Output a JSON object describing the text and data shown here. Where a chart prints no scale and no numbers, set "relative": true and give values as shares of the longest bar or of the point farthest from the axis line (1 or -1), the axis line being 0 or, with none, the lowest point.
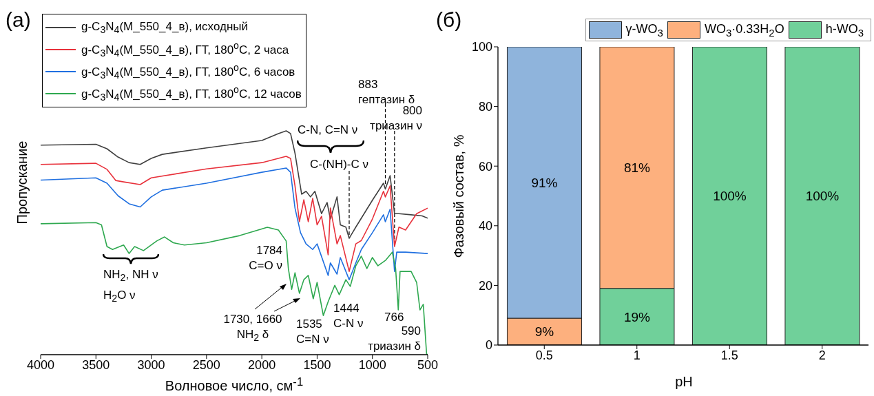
{
  "chart_data": [
    {
      "type": "line",
      "title": "(a)",
      "xlabel": "Волновое число, см$^{-1}$",
      "ylabel": "Пропускание",
      "relative": true,
      "xlim": [
        4000,
        500
      ],
      "xticks": [
        4000,
        3500,
        3000,
        2500,
        2000,
        1500,
        1000,
        500
      ],
      "legend": "top left",
      "series": [
        {
          "name": "g-C$_{3}$N$_{4}$(M_550_4_в), исходный",
          "color": "#404040",
          "x": [
            4000,
            3500,
            3400,
            3300,
            3200,
            3100,
            3000,
            2900,
            2500,
            2000,
            1850,
            1780,
            1740,
            1700,
            1640,
            1600,
            1560,
            1520,
            1460,
            1410,
            1380,
            1320,
            1290,
            1240,
            1210,
            1150,
            1000,
            900,
            883,
            840,
            800,
            760,
            650,
            550,
            500
          ],
          "values": [
            0.936,
            0.94,
            0.92,
            0.883,
            0.858,
            0.85,
            0.877,
            0.895,
            0.924,
            0.957,
            0.988,
            1.0,
            0.988,
            0.9,
            0.717,
            0.73,
            0.705,
            0.73,
            0.63,
            0.68,
            0.606,
            0.705,
            0.58,
            0.57,
            0.52,
            0.57,
            0.69,
            0.766,
            0.74,
            0.8,
            0.63,
            0.63,
            0.625,
            0.62,
            0.61
          ]
        },
        {
          "name": "g-C$_{3}$N$_{4}$(M_550_4_в), ГТ, 180$^{o}$C, 2 часа",
          "color": "#e8313b",
          "x": [
            4000,
            3500,
            3400,
            3320,
            3250,
            3100,
            3000,
            2500,
            2000,
            1780,
            1740,
            1700,
            1660,
            1620,
            1580,
            1540,
            1500,
            1460,
            1400,
            1380,
            1320,
            1290,
            1210,
            1150,
            1100,
            1000,
            900,
            883,
            840,
            800,
            760,
            700,
            600,
            500
          ],
          "values": [
            0.85,
            0.855,
            0.828,
            0.778,
            0.772,
            0.76,
            0.79,
            0.83,
            0.858,
            0.886,
            0.877,
            0.754,
            0.594,
            0.692,
            0.594,
            0.698,
            0.58,
            0.618,
            0.446,
            0.655,
            0.495,
            0.532,
            0.372,
            0.495,
            0.51,
            0.606,
            0.73,
            0.705,
            0.754,
            0.483,
            0.57,
            0.557,
            0.63,
            0.655
          ]
        },
        {
          "name": "g-C$_{3}$N$_{4}$(M_550_4_в), ГТ, 180$^{o}$C, 6 часов",
          "color": "#1f6fe0",
          "x": [
            4000,
            3500,
            3400,
            3300,
            3200,
            3100,
            3000,
            2900,
            2500,
            2000,
            1780,
            1740,
            1700,
            1650,
            1600,
            1540,
            1500,
            1400,
            1380,
            1320,
            1290,
            1210,
            1150,
            1100,
            1000,
            900,
            883,
            840,
            800,
            780,
            700,
            500
          ],
          "values": [
            0.78,
            0.79,
            0.766,
            0.71,
            0.674,
            0.66,
            0.705,
            0.735,
            0.766,
            0.815,
            0.834,
            0.815,
            0.655,
            0.545,
            0.495,
            0.47,
            0.495,
            0.354,
            0.41,
            0.36,
            0.434,
            0.335,
            0.41,
            0.47,
            0.545,
            0.625,
            0.594,
            0.65,
            0.372,
            0.458,
            0.458,
            0.452
          ]
        },
        {
          "name": "g-C$_{3}$N$_{4}$(M_550_4_в), ГТ, 180$^{o}$C, 12 часов",
          "color": "#2ea84f",
          "x": [
            4000,
            3500,
            3450,
            3400,
            3350,
            3250,
            3200,
            3150,
            3070,
            2950,
            2880,
            2800,
            2700,
            2500,
            2200,
            1950,
            1850,
            1780,
            1760,
            1730,
            1700,
            1660,
            1620,
            1580,
            1535,
            1500,
            1444,
            1400,
            1340,
            1300,
            1240,
            1200,
            1150,
            1100,
            1050,
            1000,
            950,
            880,
            820,
            790,
            766,
            750,
            650,
            600,
            570,
            540,
            510,
            500
          ],
          "values": [
            0.585,
            0.59,
            0.58,
            0.483,
            0.47,
            0.49,
            0.452,
            0.483,
            0.465,
            0.508,
            0.526,
            0.5,
            0.49,
            0.5,
            0.532,
            0.569,
            0.557,
            0.508,
            0.385,
            0.292,
            0.366,
            0.274,
            0.335,
            0.354,
            0.25,
            0.323,
            0.175,
            0.237,
            0.31,
            0.268,
            0.335,
            0.305,
            0.397,
            0.44,
            0.385,
            0.434,
            0.397,
            0.422,
            0.458,
            0.385,
            0.2,
            0.372,
            0.372,
            0.323,
            0.2,
            0.225,
            0.003,
            0
          ]
        }
      ],
      "ref_lines": [
        {
          "axis": "x",
          "value": 1210,
          "line_style": "dashed",
          "color": "#000000"
        },
        {
          "axis": "x",
          "value": 883,
          "line_style": "dashed",
          "color": "#000000"
        },
        {
          "axis": "x",
          "value": 800,
          "line_style": "dashed",
          "color": "#000000"
        }
      ],
      "annotations": [
        "883\nгептазин δ",
        "800\nтриазин ν",
        "C-N, C=N ν",
        "C-(NH)-C ν",
        "NH$_{2}$, NH ν",
        "H$_{2}$O ν",
        "1784\nC=O ν",
        "1730, 1660\nNH$_{2}$ δ",
        "1535\nC=N ν",
        "1444\nC-N ν",
        "766",
        "590\nтриазин δ"
      ]
    },
    {
      "type": "bar",
      "title": "(б)",
      "xlabel": "pH",
      "ylabel": "Фазовый состав, %",
      "stacked": true,
      "legend": "top right",
      "categories": [
        "0.5",
        "1",
        "1.5",
        "2"
      ],
      "ylim": [
        0,
        100
      ],
      "yticks": [
        0,
        20,
        40,
        60,
        80,
        100
      ],
      "series": [
        {
          "name": "h-WO$_{3}$",
          "color": "#70d09a",
          "values": [
            null,
            19,
            100,
            100
          ],
          "value_labels": [
            null,
            "19%",
            "100%",
            "100%"
          ]
        },
        {
          "name": "WO$_{3}$·0.33H$_{2}$O",
          "color": "#fdb07e",
          "values": [
            9,
            81,
            null,
            null
          ],
          "value_labels": [
            "9%",
            "81%",
            null,
            null
          ]
        },
        {
          "name": "γ-WO$_{3}$",
          "color": "#8fb4dc",
          "values": [
            91,
            null,
            null,
            null
          ],
          "value_labels": [
            "91%",
            null,
            null,
            null
          ]
        }
      ]
    }
  ]
}
